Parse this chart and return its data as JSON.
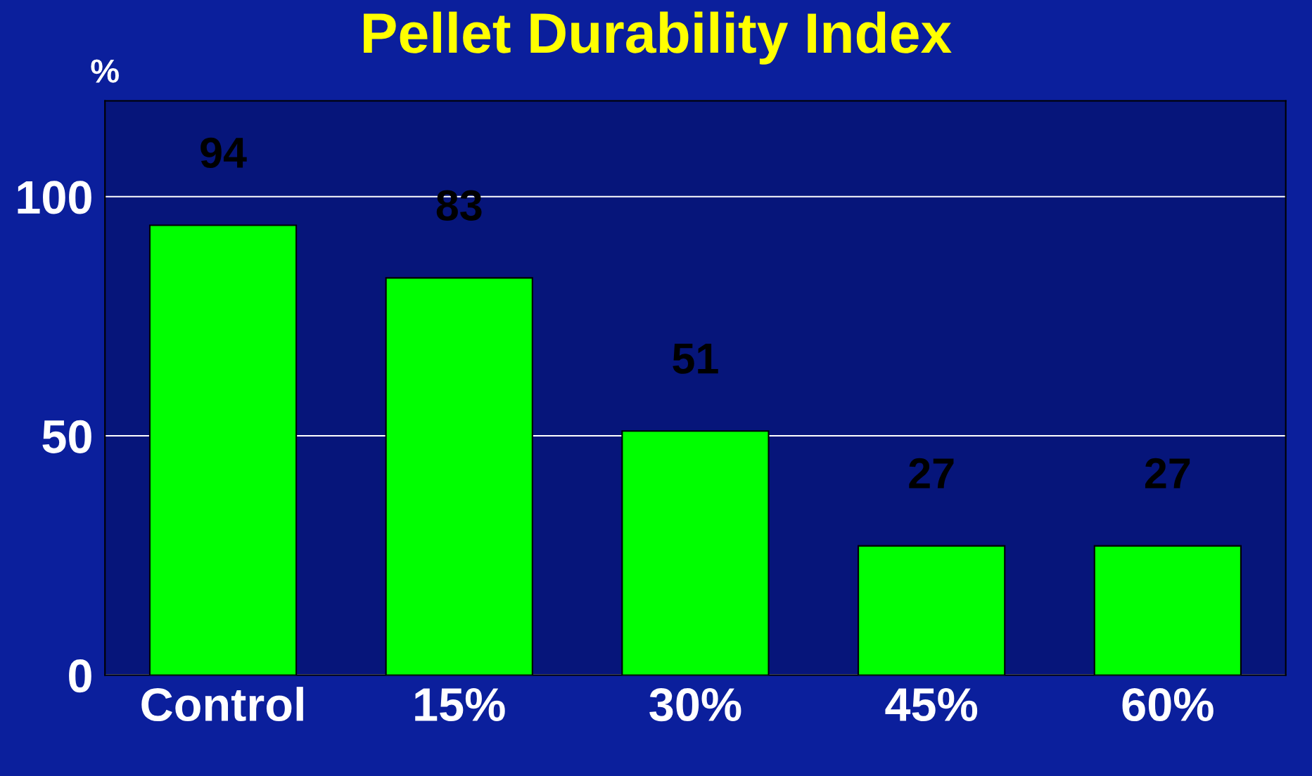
{
  "chart_data": {
    "type": "bar",
    "title": "Pellet Durability Index",
    "ylabel": "%",
    "categories": [
      "Control",
      "15%",
      "30%",
      "45%",
      "60%"
    ],
    "values": [
      94,
      83,
      51,
      27,
      27
    ],
    "color": "#00ff00",
    "ylim": [
      0,
      120
    ],
    "yticks": [
      0,
      50,
      100
    ],
    "grid": "y",
    "data_labels": true
  }
}
